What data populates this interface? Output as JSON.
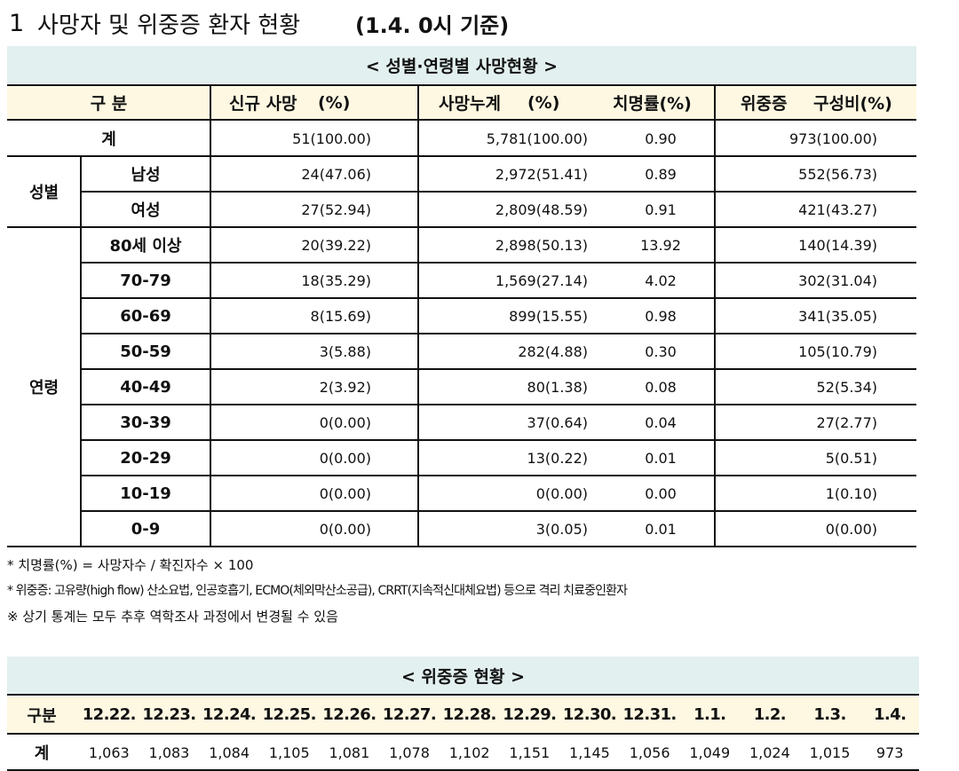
{
  "title": {
    "number": "1",
    "text": "사망자 및 위중증 환자 현황",
    "note": "(1.4. 0시 기준)"
  },
  "table1": {
    "caption": "< 성별·연령별 사망현황 >",
    "header": {
      "group": "구 분",
      "new_deaths": "신규 사망",
      "new_deaths_unit": "(%)",
      "cum_deaths": "사망누계",
      "cum_deaths_unit": "(%)",
      "fatality": "치명률(%)",
      "severe": "위중증",
      "severe_unit": "구성비(%)"
    },
    "total": {
      "label": "계",
      "cells": [
        "51(100.00)",
        "5,781(100.00)",
        "0.90",
        "973(100.00)"
      ]
    },
    "groups": [
      {
        "label": "성별",
        "rows": [
          {
            "label": "남성",
            "cells": [
              "24(47.06)",
              "2,972(51.41)",
              "0.89",
              "552(56.73)"
            ]
          },
          {
            "label": "여성",
            "cells": [
              "27(52.94)",
              "2,809(48.59)",
              "0.91",
              "421(43.27)"
            ]
          }
        ]
      },
      {
        "label": "연령",
        "rows": [
          {
            "label": "80세 이상",
            "cells": [
              "20(39.22)",
              "2,898(50.13)",
              "13.92",
              "140(14.39)"
            ]
          },
          {
            "label": "70-79",
            "cells": [
              "18(35.29)",
              "1,569(27.14)",
              "4.02",
              "302(31.04)"
            ]
          },
          {
            "label": "60-69",
            "cells": [
              "8(15.69)",
              "899(15.55)",
              "0.98",
              "341(35.05)"
            ]
          },
          {
            "label": "50-59",
            "cells": [
              "3(5.88)",
              "282(4.88)",
              "0.30",
              "105(10.79)"
            ]
          },
          {
            "label": "40-49",
            "cells": [
              "2(3.92)",
              "80(1.38)",
              "0.08",
              "52(5.34)"
            ]
          },
          {
            "label": "30-39",
            "cells": [
              "0(0.00)",
              "37(0.64)",
              "0.04",
              "27(2.77)"
            ]
          },
          {
            "label": "20-29",
            "cells": [
              "0(0.00)",
              "13(0.22)",
              "0.01",
              "5(0.51)"
            ]
          },
          {
            "label": "10-19",
            "cells": [
              "0(0.00)",
              "0(0.00)",
              "0.00",
              "1(0.10)"
            ]
          },
          {
            "label": "0-9",
            "cells": [
              "0(0.00)",
              "3(0.05)",
              "0.01",
              "0(0.00)"
            ]
          }
        ]
      }
    ]
  },
  "notes": [
    "* 치명률(%) = 사망자수 / 확진자수 × 100",
    "* 위중증: 고유량(high flow) 산소요법, 인공호흡기, ECMO(체외막산소공급), CRRT(지속적신대체요법) 등으로 격리 치료중인환자",
    "※ 상기 통계는 모두 추후 역학조사 과정에서 변경될 수 있음"
  ],
  "table2": {
    "caption": "< 위중증 현황 >",
    "header_label": "구분",
    "dates": [
      "12.22.",
      "12.23.",
      "12.24.",
      "12.25.",
      "12.26.",
      "12.27.",
      "12.28.",
      "12.29.",
      "12.30.",
      "12.31.",
      "1.1.",
      "1.2.",
      "1.3.",
      "1.4."
    ],
    "row_label": "계",
    "values": [
      "1,063",
      "1,083",
      "1,084",
      "1,105",
      "1,081",
      "1,078",
      "1,102",
      "1,151",
      "1,145",
      "1,056",
      "1,049",
      "1,024",
      "1,015",
      "973"
    ]
  }
}
